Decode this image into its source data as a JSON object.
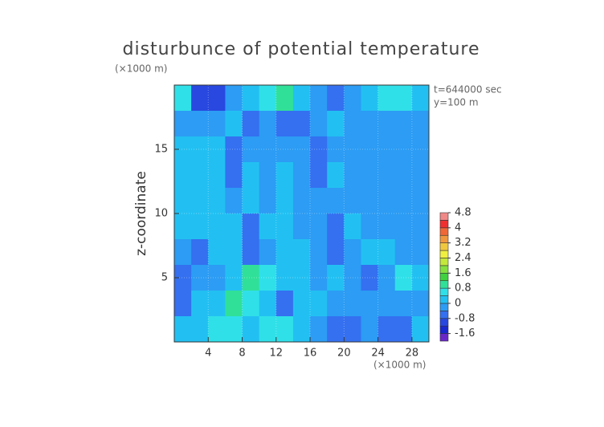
{
  "chart_data": {
    "type": "contour",
    "title": "disturbunce of potential temperature",
    "y_unit": "(×1000 m)",
    "x_unit": "(×1000 m)",
    "y_label": "z-coordinate",
    "annotations": [
      "t=644000 sec",
      "y=100 m"
    ],
    "x": [
      1,
      3,
      5,
      7,
      9,
      11,
      13,
      15,
      17,
      19,
      21,
      23,
      25,
      27,
      29
    ],
    "y": [
      19,
      17,
      15,
      13,
      11,
      9,
      7,
      5,
      3,
      1
    ],
    "z": [
      [
        0.6,
        -1.0,
        -1.0,
        -0.4,
        0.2,
        0.6,
        1.0,
        0.2,
        -0.4,
        -0.8,
        -0.4,
        0.2,
        0.4,
        0.4,
        0.2
      ],
      [
        -0.4,
        -0.2,
        -0.2,
        0.2,
        -0.6,
        -0.2,
        -0.6,
        -0.6,
        -0.2,
        0.2,
        -0.2,
        -0.2,
        -0.2,
        -0.2,
        -0.2
      ],
      [
        0,
        0,
        0,
        -0.6,
        -0.2,
        -0.2,
        -0.2,
        -0.4,
        -0.6,
        -0.2,
        -0.2,
        -0.2,
        -0.2,
        -0.2,
        -0.2
      ],
      [
        0,
        0,
        0.2,
        -0.6,
        0.2,
        -0.2,
        0,
        -0.4,
        -0.6,
        0.2,
        -0.2,
        -0.2,
        -0.2,
        -0.2,
        -0.2
      ],
      [
        0,
        0.2,
        0,
        -0.4,
        0,
        -0.2,
        0,
        -0.4,
        -0.2,
        -0.2,
        -0.2,
        -0.2,
        -0.2,
        -0.2,
        -0.2
      ],
      [
        0,
        0.2,
        0,
        0,
        -0.6,
        0,
        0,
        -0.4,
        -0.2,
        -0.6,
        0,
        -0.2,
        -0.2,
        -0.2,
        -0.2
      ],
      [
        -0.4,
        -0.8,
        0,
        0,
        -0.6,
        -0.2,
        0,
        0,
        -0.2,
        -0.6,
        -0.2,
        0,
        0,
        -0.2,
        -0.2
      ],
      [
        -0.8,
        -0.4,
        -0.4,
        0.2,
        0.8,
        0.4,
        0,
        0,
        -0.2,
        0,
        -0.4,
        -0.6,
        -0.2,
        0.4,
        0
      ],
      [
        -0.6,
        0,
        0,
        0.8,
        0.6,
        0,
        -0.6,
        0,
        0,
        -0.4,
        -0.4,
        -0.2,
        -0.4,
        -0.2,
        -0.2
      ],
      [
        0,
        0,
        0.4,
        0.6,
        0.2,
        0.6,
        0.4,
        0,
        -0.4,
        -0.8,
        -0.6,
        -0.4,
        -0.8,
        -0.6,
        0
      ]
    ],
    "xlim": [
      0,
      30
    ],
    "ylim": [
      0,
      20
    ],
    "xticks": [
      4,
      8,
      12,
      16,
      20,
      24,
      28
    ],
    "yticks": [
      5,
      10,
      15
    ],
    "grid": true,
    "colorbar": {
      "levels": [
        -2.0,
        -1.6,
        -1.2,
        -0.8,
        -0.4,
        0,
        0.4,
        0.8,
        1.2,
        1.6,
        2.0,
        2.4,
        2.8,
        3.2,
        3.6,
        4.0,
        4.4,
        4.8
      ],
      "colors": [
        "#6a28c8",
        "#1a28d0",
        "#2848e0",
        "#3470f0",
        "#2c9cf4",
        "#22c0f2",
        "#30e0e8",
        "#30e098",
        "#40d040",
        "#84e040",
        "#c4e83c",
        "#f0f040",
        "#f0c840",
        "#f09840",
        "#f06838",
        "#f03030",
        "#f08888"
      ],
      "ticks": [
        -1.6,
        -0.8,
        0,
        0.8,
        1.6,
        2.4,
        3.2,
        4,
        4.8
      ]
    }
  }
}
